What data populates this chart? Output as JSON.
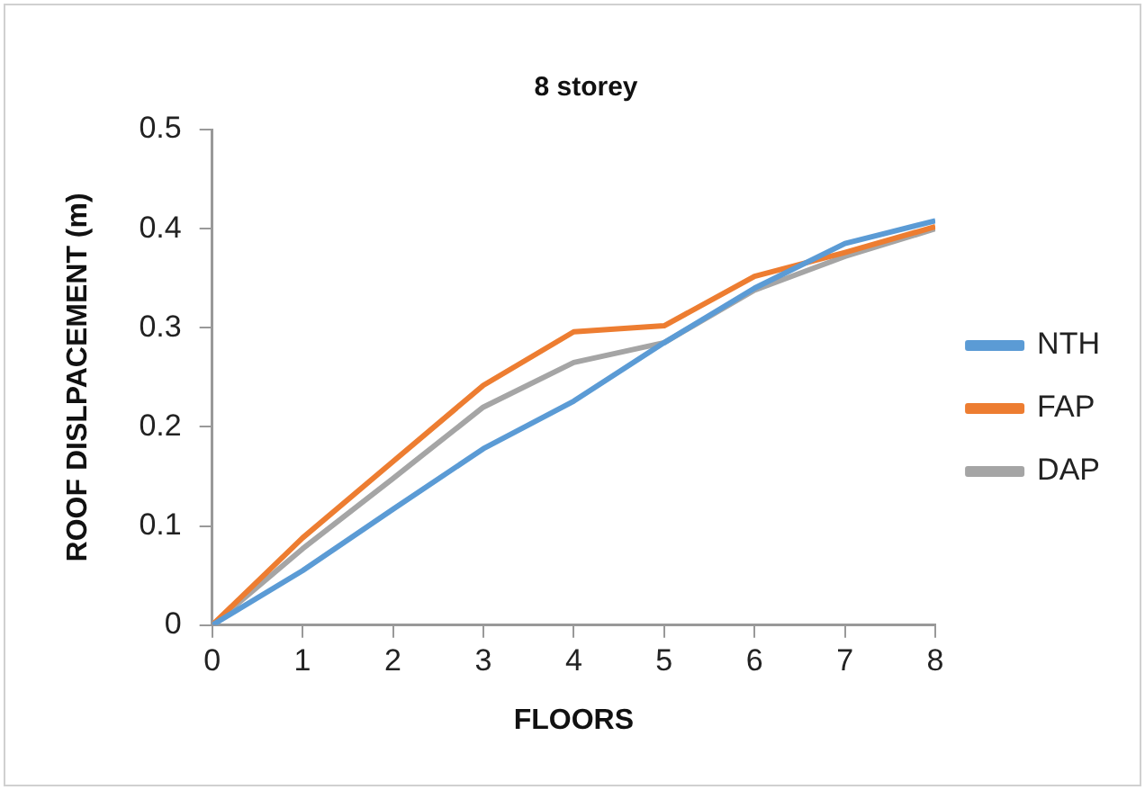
{
  "chart_data": {
    "type": "line",
    "title": "8 storey",
    "xlabel": "FLOORS",
    "ylabel": "ROOF DISLPACEMENT (m)",
    "x": [
      0,
      1,
      2,
      3,
      4,
      5,
      6,
      7,
      8
    ],
    "xlim": [
      0,
      8
    ],
    "xticks": [
      0,
      1,
      2,
      3,
      4,
      5,
      6,
      7,
      8
    ],
    "ylim": [
      0,
      0.5
    ],
    "yticks": [
      0,
      0.1,
      0.2,
      0.3,
      0.4,
      0.5
    ],
    "grid": false,
    "legend": "right",
    "marker": "none",
    "line_style": "solid",
    "series": [
      {
        "name": "NTH",
        "color": "#5b9bd5",
        "values": [
          0,
          0.055,
          0.117,
          0.178,
          0.226,
          0.285,
          0.34,
          0.385,
          0.408
        ]
      },
      {
        "name": "FAP",
        "color": "#ed7d31",
        "values": [
          0,
          0.088,
          0.165,
          0.242,
          0.296,
          0.302,
          0.352,
          0.376,
          0.402
        ]
      },
      {
        "name": "DAP",
        "color": "#a5a5a5",
        "values": [
          0,
          0.077,
          0.148,
          0.22,
          0.265,
          0.285,
          0.338,
          0.372,
          0.4
        ]
      }
    ]
  }
}
